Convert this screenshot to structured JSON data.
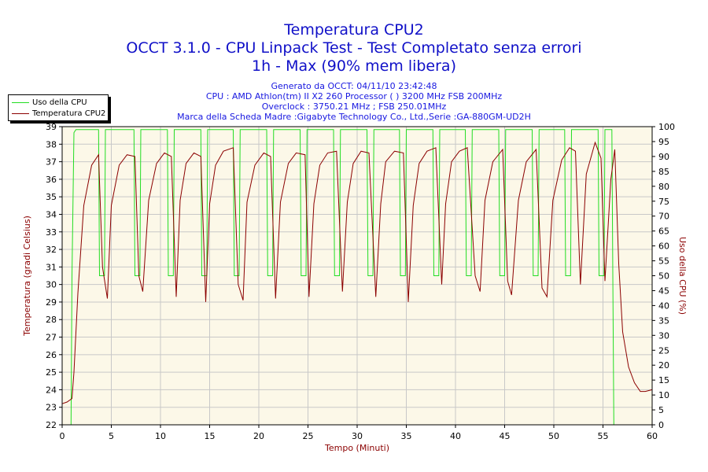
{
  "chart_data": {
    "type": "line",
    "title": "Temperatura CPU2",
    "subtitle_lines": [
      "OCCT 3.1.0 - CPU Linpack Test - Test Completato senza errori",
      "1h - Max (90% mem libera)"
    ],
    "info_lines": [
      "Generato da OCCT: 04/11/10 23:42:48",
      "CPU : AMD Athlon(tm) II X2 260 Processor (  ) 3200 MHz FSB 200MHz",
      "Overclock : 3750.21 MHz ; FSB 250.01MHz",
      "Marca della Scheda Madre :Gigabyte Technology Co., Ltd.,Serie :GA-880GM-UD2H"
    ],
    "xlabel": "Tempo (Minuti)",
    "ylabel_left": "Temperatura (gradi Celsius)",
    "ylabel_right": "Uso della CPU (%)",
    "xlim": [
      0,
      60
    ],
    "ylim_left": [
      22,
      39
    ],
    "ylim_right": [
      0,
      100
    ],
    "x_ticks": [
      0,
      5,
      10,
      15,
      20,
      25,
      30,
      35,
      40,
      45,
      50,
      55,
      60
    ],
    "y_ticks_left": [
      22,
      23,
      24,
      25,
      26,
      27,
      28,
      29,
      30,
      31,
      32,
      33,
      34,
      35,
      36,
      37,
      38,
      39
    ],
    "y_ticks_right": [
      0,
      5,
      10,
      15,
      20,
      25,
      30,
      35,
      40,
      45,
      50,
      55,
      60,
      65,
      70,
      75,
      80,
      85,
      90,
      95,
      100
    ],
    "grid": true,
    "legend_position": "top-left outside",
    "colors": {
      "plot_background": "#fcf8e8",
      "grid": "#c8c8c8",
      "title": "#1010c8",
      "info": "#1818e0",
      "axis_label": "#8b0000",
      "cpu_usage": "#22dd22",
      "temperature": "#8b0000"
    },
    "series": [
      {
        "name": "Uso della CPU",
        "axis": "right",
        "color": "#22dd22",
        "x": [
          0,
          0.9,
          1.0,
          1.2,
          1.4,
          3.7,
          3.8,
          4.3,
          4.4,
          7.3,
          7.4,
          7.9,
          8.0,
          10.7,
          10.8,
          11.3,
          11.4,
          14.1,
          14.2,
          14.7,
          14.8,
          17.4,
          17.5,
          18.0,
          18.1,
          20.8,
          20.9,
          21.4,
          21.5,
          24.2,
          24.3,
          24.8,
          24.9,
          27.6,
          27.7,
          28.2,
          28.3,
          31.0,
          31.1,
          31.6,
          31.7,
          34.3,
          34.4,
          34.9,
          35.0,
          37.7,
          37.8,
          38.3,
          38.4,
          41.0,
          41.1,
          41.6,
          41.7,
          44.4,
          44.5,
          45.0,
          45.1,
          47.8,
          47.9,
          48.4,
          48.5,
          51.1,
          51.2,
          51.7,
          51.8,
          54.5,
          54.6,
          55.1,
          55.2,
          55.9,
          56.0,
          56.1,
          60
        ],
        "y": [
          0,
          0,
          50,
          98,
          99,
          99,
          50,
          50,
          99,
          99,
          50,
          50,
          99,
          99,
          50,
          50,
          99,
          99,
          50,
          50,
          99,
          99,
          50,
          50,
          99,
          99,
          50,
          50,
          99,
          99,
          50,
          50,
          99,
          99,
          50,
          50,
          99,
          99,
          50,
          50,
          99,
          99,
          50,
          50,
          99,
          99,
          50,
          50,
          99,
          99,
          50,
          50,
          99,
          99,
          50,
          50,
          99,
          99,
          50,
          50,
          99,
          99,
          50,
          50,
          99,
          99,
          50,
          50,
          99,
          99,
          50,
          0,
          0
        ]
      },
      {
        "name": "Temperatura CPU2",
        "axis": "left",
        "color": "#8b0000",
        "x": [
          0,
          0.5,
          1.0,
          1.2,
          1.6,
          2.2,
          3.0,
          3.7,
          4.1,
          4.6,
          5.0,
          5.8,
          6.6,
          7.4,
          7.8,
          8.2,
          8.8,
          9.6,
          10.4,
          11.1,
          11.6,
          12.0,
          12.6,
          13.4,
          14.1,
          14.6,
          15.0,
          15.6,
          16.4,
          17.4,
          17.9,
          18.4,
          18.8,
          19.6,
          20.5,
          21.2,
          21.7,
          22.2,
          23.0,
          23.8,
          24.7,
          25.1,
          25.6,
          26.2,
          27.0,
          27.9,
          28.5,
          29.0,
          29.6,
          30.4,
          31.2,
          31.9,
          32.4,
          32.9,
          33.8,
          34.7,
          35.2,
          35.7,
          36.3,
          37.1,
          38.0,
          38.6,
          39.0,
          39.6,
          40.4,
          41.2,
          42.0,
          42.5,
          43.0,
          43.8,
          44.8,
          45.3,
          45.7,
          46.4,
          47.2,
          48.2,
          48.8,
          49.3,
          49.9,
          50.8,
          51.6,
          52.2,
          52.7,
          53.3,
          54.2,
          54.8,
          55.2,
          55.8,
          56.2,
          56.6,
          57.0,
          57.6,
          58.2,
          58.8,
          59.3,
          60
        ],
        "y": [
          23.2,
          23.3,
          23.5,
          25.0,
          29.5,
          34.5,
          36.8,
          37.4,
          31.0,
          29.2,
          34.5,
          36.8,
          37.4,
          37.3,
          30.5,
          29.6,
          34.8,
          36.9,
          37.5,
          37.3,
          29.3,
          34.8,
          36.9,
          37.5,
          37.3,
          29.0,
          34.6,
          36.8,
          37.6,
          37.8,
          30.0,
          29.1,
          34.7,
          36.8,
          37.5,
          37.3,
          29.2,
          34.7,
          36.9,
          37.5,
          37.4,
          29.3,
          34.6,
          36.8,
          37.5,
          37.6,
          29.6,
          34.7,
          36.9,
          37.6,
          37.5,
          29.3,
          34.6,
          37.0,
          37.6,
          37.5,
          29.0,
          34.5,
          36.9,
          37.6,
          37.8,
          30.0,
          34.6,
          37.0,
          37.6,
          37.8,
          30.5,
          29.6,
          34.8,
          37.0,
          37.7,
          30.2,
          29.4,
          34.8,
          37.0,
          37.7,
          29.8,
          29.3,
          34.8,
          37.1,
          37.8,
          37.6,
          30.0,
          36.3,
          38.1,
          37.2,
          30.2,
          36.0,
          37.7,
          31.2,
          27.3,
          25.3,
          24.4,
          23.9,
          23.9,
          24.0
        ]
      }
    ]
  }
}
